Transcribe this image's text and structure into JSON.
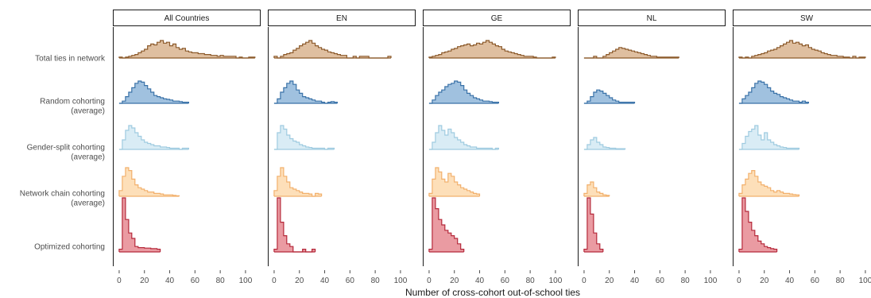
{
  "chart_data": {
    "type": "histogram-ridgeline",
    "xlabel": "Number of cross-cohort out-of-school ties",
    "x_ticks": [
      0,
      20,
      40,
      60,
      80,
      100
    ],
    "xlim": [
      -5,
      112
    ],
    "bin_width": 2.5,
    "panels": [
      {
        "key": "all",
        "label": "All Countries"
      },
      {
        "key": "en",
        "label": "EN"
      },
      {
        "key": "ge",
        "label": "GE"
      },
      {
        "key": "nl",
        "label": "NL"
      },
      {
        "key": "sw",
        "label": "SW"
      }
    ],
    "rows": [
      {
        "key": "total",
        "label": [
          "Total ties in network"
        ],
        "fill": "#d9b48f",
        "stroke": "#8c5a2b"
      },
      {
        "key": "random",
        "label": [
          "Random cohorting",
          "(average)"
        ],
        "fill": "#8fb6d9",
        "stroke": "#3a72a8"
      },
      {
        "key": "gender",
        "label": [
          "Gender-split cohorting",
          "(average)"
        ],
        "fill": "#d2e9f3",
        "stroke": "#9fcbe0"
      },
      {
        "key": "chain",
        "label": [
          "Network chain cohorting",
          "(average)"
        ],
        "fill": "#fdd9ad",
        "stroke": "#f2b06c"
      },
      {
        "key": "optimized",
        "label": [
          "Optimized cohorting"
        ],
        "fill": "#e68a92",
        "stroke": "#b5283a"
      }
    ],
    "series": {
      "all": {
        "total": [
          0.05,
          0,
          0.05,
          0.1,
          0.15,
          0.2,
          0.3,
          0.4,
          0.5,
          0.7,
          0.8,
          0.75,
          0.9,
          1.0,
          0.85,
          0.9,
          0.7,
          0.8,
          0.6,
          0.5,
          0.55,
          0.4,
          0.35,
          0.3,
          0.3,
          0.25,
          0.25,
          0.2,
          0.2,
          0.15,
          0.15,
          0.1,
          0.15,
          0.1,
          0.1,
          0.1,
          0.1,
          0,
          0.05,
          0,
          0,
          0.05,
          0.05
        ],
        "random": [
          0,
          0.1,
          0.3,
          0.5,
          0.7,
          0.9,
          1.0,
          0.95,
          0.8,
          0.65,
          0.5,
          0.35,
          0.3,
          0.25,
          0.2,
          0.18,
          0.15,
          0.1,
          0.1,
          0.08,
          0.05,
          0.05
        ],
        "gender": [
          0,
          0.4,
          0.8,
          1.0,
          0.9,
          0.7,
          0.55,
          0.4,
          0.3,
          0.25,
          0.2,
          0.15,
          0.15,
          0.1,
          0.1,
          0.08,
          0.05,
          0.05,
          0.05,
          0,
          0.05,
          0.05
        ],
        "chain": [
          0.2,
          0.7,
          1.0,
          0.9,
          0.6,
          0.4,
          0.3,
          0.25,
          0.2,
          0.15,
          0.15,
          0.1,
          0.1,
          0.08,
          0.05,
          0.05,
          0.05,
          0.03,
          0.02
        ],
        "optimized": [
          0.05,
          1.0,
          0.6,
          0.35,
          0.25,
          0.1,
          0.08,
          0.08,
          0.07,
          0.07,
          0.06,
          0.06,
          0.05
        ]
      },
      "en": {
        "total": [
          0.1,
          0,
          0.1,
          0.2,
          0.25,
          0.3,
          0.45,
          0.55,
          0.7,
          0.8,
          0.9,
          1.0,
          0.85,
          0.7,
          0.6,
          0.5,
          0.45,
          0.35,
          0.3,
          0.25,
          0.2,
          0.15,
          0.15,
          0,
          0,
          0.1,
          0,
          0.1,
          0.1,
          0.1,
          0,
          0,
          0,
          0,
          0,
          0,
          0.1
        ],
        "random": [
          0,
          0.2,
          0.5,
          0.7,
          0.9,
          1.0,
          0.85,
          0.6,
          0.45,
          0.3,
          0.25,
          0.2,
          0.15,
          0.1,
          0.1,
          0.05,
          0,
          0.05,
          0.08,
          0.05
        ],
        "gender": [
          0,
          0.7,
          1.0,
          0.85,
          0.6,
          0.45,
          0.35,
          0.3,
          0.2,
          0.15,
          0.1,
          0.08,
          0.05,
          0.05,
          0.05,
          0.05,
          0,
          0.05,
          0.05
        ],
        "chain": [
          0.2,
          0.7,
          1.0,
          0.7,
          0.5,
          0.3,
          0.25,
          0.2,
          0.15,
          0.1,
          0.1,
          0.08,
          0,
          0.1,
          0.08
        ],
        "optimized": [
          0.05,
          1.0,
          0.55,
          0.3,
          0.15,
          0.1,
          0,
          0,
          0,
          0.05,
          0,
          0,
          0.05
        ]
      },
      "ge": {
        "total": [
          0.05,
          0.1,
          0.15,
          0.2,
          0.3,
          0.35,
          0.4,
          0.5,
          0.55,
          0.65,
          0.7,
          0.75,
          0.8,
          0.7,
          0.75,
          0.85,
          0.8,
          0.9,
          1.0,
          0.9,
          0.8,
          0.7,
          0.65,
          0.5,
          0.4,
          0.35,
          0.3,
          0.25,
          0.2,
          0.15,
          0.1,
          0.1,
          0.1,
          0.05,
          0,
          0,
          0,
          0,
          0,
          0.05
        ],
        "random": [
          0,
          0.15,
          0.35,
          0.5,
          0.6,
          0.75,
          0.85,
          0.9,
          1.0,
          0.95,
          0.8,
          0.6,
          0.45,
          0.35,
          0.25,
          0.2,
          0.15,
          0.1,
          0.1,
          0.08,
          0.05,
          0.05
        ],
        "gender": [
          0,
          0.3,
          0.7,
          1.0,
          0.8,
          0.6,
          0.85,
          0.7,
          0.5,
          0.4,
          0.3,
          0.2,
          0.15,
          0.1,
          0.1,
          0.05,
          0.05,
          0.05,
          0.05,
          0.05,
          0,
          0.05
        ],
        "chain": [
          0.1,
          0.6,
          1.0,
          0.85,
          0.6,
          0.5,
          0.8,
          0.7,
          0.5,
          0.4,
          0.3,
          0.25,
          0.2,
          0.15,
          0.1,
          0.08
        ],
        "optimized": [
          0.05,
          1.0,
          0.8,
          0.6,
          0.5,
          0.4,
          0.35,
          0.3,
          0.25,
          0.15,
          0.05
        ]
      },
      "nl": {
        "total": [
          0,
          0,
          0,
          0.1,
          0,
          0,
          0.1,
          0.2,
          0.3,
          0.4,
          0.5,
          0.6,
          0.55,
          0.5,
          0.45,
          0.4,
          0.35,
          0.3,
          0.25,
          0.2,
          0.15,
          0.1,
          0.1,
          0.05,
          0.05,
          0.05,
          0.05,
          0.05,
          0.05,
          0.05
        ],
        "random": [
          0,
          0.1,
          0.3,
          0.5,
          0.6,
          0.55,
          0.45,
          0.35,
          0.25,
          0.15,
          0.1,
          0.05,
          0.05,
          0.05,
          0.05,
          0.05
        ],
        "gender": [
          0,
          0.2,
          0.4,
          0.5,
          0.3,
          0.2,
          0.1,
          0.08,
          0.05,
          0.05,
          0.03,
          0.03,
          0.03
        ],
        "chain": [
          0.1,
          0.4,
          0.5,
          0.3,
          0.15,
          0.1,
          0.05,
          0.03
        ],
        "optimized": [
          0.05,
          1.0,
          0.7,
          0.35,
          0.15,
          0.05
        ]
      },
      "sw": {
        "total": [
          0.05,
          0,
          0.05,
          0,
          0.1,
          0.15,
          0.2,
          0.25,
          0.3,
          0.4,
          0.45,
          0.5,
          0.6,
          0.7,
          0.8,
          0.9,
          1.0,
          0.85,
          0.9,
          0.8,
          0.7,
          0.75,
          0.6,
          0.5,
          0.45,
          0.4,
          0.3,
          0.25,
          0.2,
          0.15,
          0.15,
          0.1,
          0.1,
          0.05,
          0.05,
          0,
          0.1,
          0,
          0.05,
          0.05
        ],
        "random": [
          0,
          0.2,
          0.35,
          0.5,
          0.7,
          0.9,
          1.0,
          0.95,
          0.85,
          0.7,
          0.55,
          0.45,
          0.4,
          0.3,
          0.25,
          0.2,
          0.15,
          0.1,
          0.1,
          0.05,
          0.1,
          0.05
        ],
        "gender": [
          0,
          0.25,
          0.55,
          0.75,
          0.85,
          1.0,
          0.6,
          0.4,
          0.7,
          0.4,
          0.3,
          0.2,
          0.15,
          0.1,
          0.08,
          0.05,
          0.05,
          0.05,
          0.05
        ],
        "chain": [
          0.1,
          0.4,
          0.6,
          0.8,
          0.9,
          0.7,
          0.5,
          0.4,
          0.35,
          0.3,
          0.2,
          0.15,
          0.2,
          0.15,
          0.1,
          0.1,
          0.08,
          0.06,
          0.05
        ],
        "optimized": [
          0.05,
          1.0,
          0.75,
          0.55,
          0.4,
          0.3,
          0.2,
          0.15,
          0.1,
          0.08,
          0.06,
          0.05
        ]
      }
    }
  }
}
